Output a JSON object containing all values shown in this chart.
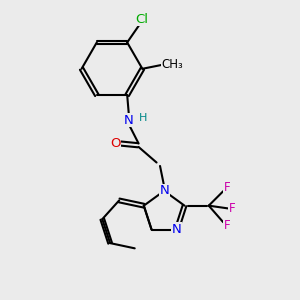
{
  "bg_color": "#ebebeb",
  "atom_colors": {
    "C": "#000000",
    "N": "#0000ee",
    "O": "#dd0000",
    "F": "#cc00aa",
    "Cl": "#00aa00",
    "H": "#008888"
  },
  "bond_color": "#000000",
  "bond_width": 1.5,
  "font_size": 9.5,
  "fig_width": 3.0,
  "fig_height": 3.0,
  "bg_color_label": "#ebebeb"
}
